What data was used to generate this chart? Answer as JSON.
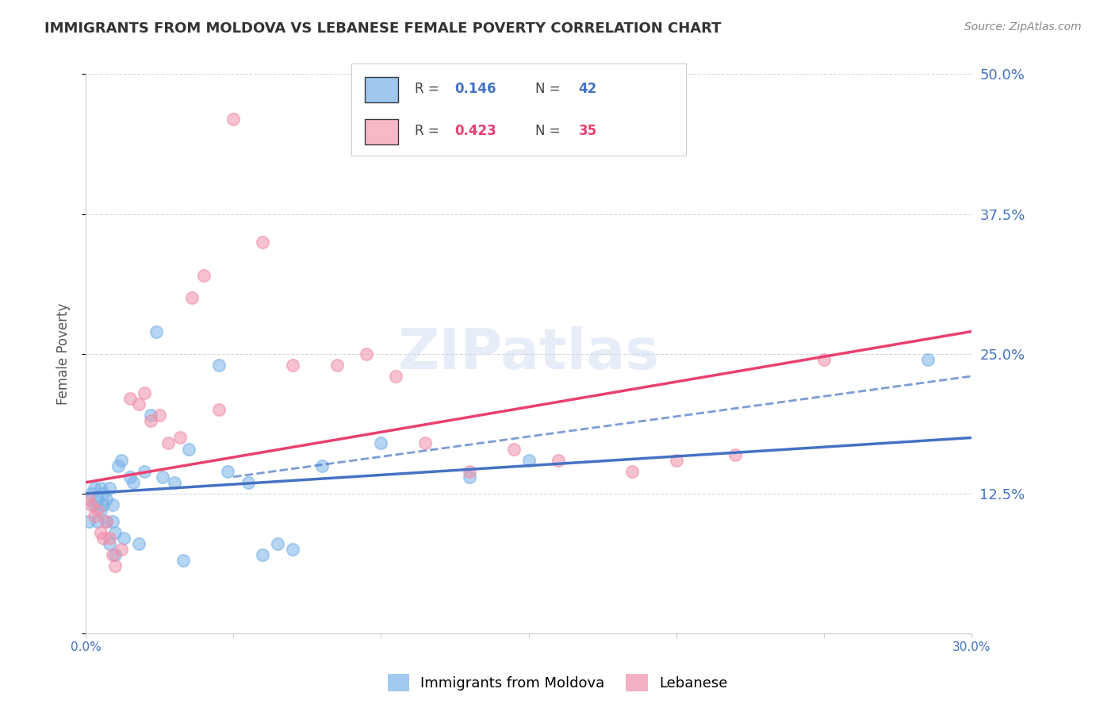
{
  "title": "IMMIGRANTS FROM MOLDOVA VS LEBANESE FEMALE POVERTY CORRELATION CHART",
  "source": "Source: ZipAtlas.com",
  "ylabel_label": "Female Poverty",
  "x_min": 0.0,
  "x_max": 0.3,
  "y_min": 0.0,
  "y_max": 0.5,
  "x_ticks": [
    0.0,
    0.05,
    0.1,
    0.15,
    0.2,
    0.25,
    0.3
  ],
  "x_tick_labels": [
    "0.0%",
    "",
    "",
    "",
    "",
    "",
    "30.0%"
  ],
  "y_ticks": [
    0.0,
    0.125,
    0.25,
    0.375,
    0.5
  ],
  "y_tick_labels": [
    "",
    "12.5%",
    "25.0%",
    "37.5%",
    "50.0%"
  ],
  "legend_entries": [
    {
      "label": "Immigrants from Moldova",
      "color": "#7fb3e8",
      "R": "0.146",
      "N": "42"
    },
    {
      "label": "Lebanese",
      "color": "#f4a0b5",
      "R": "0.423",
      "N": "35"
    }
  ],
  "watermark": "ZIPatlas",
  "blue_scatter_x": [
    0.001,
    0.002,
    0.003,
    0.003,
    0.004,
    0.004,
    0.005,
    0.005,
    0.006,
    0.006,
    0.007,
    0.007,
    0.008,
    0.008,
    0.009,
    0.009,
    0.01,
    0.01,
    0.011,
    0.012,
    0.013,
    0.015,
    0.016,
    0.018,
    0.02,
    0.022,
    0.024,
    0.026,
    0.03,
    0.033,
    0.035,
    0.045,
    0.048,
    0.055,
    0.06,
    0.065,
    0.07,
    0.08,
    0.1,
    0.13,
    0.15,
    0.285
  ],
  "blue_scatter_y": [
    0.1,
    0.125,
    0.13,
    0.115,
    0.1,
    0.12,
    0.11,
    0.13,
    0.115,
    0.125,
    0.1,
    0.12,
    0.08,
    0.13,
    0.1,
    0.115,
    0.07,
    0.09,
    0.15,
    0.155,
    0.085,
    0.14,
    0.135,
    0.08,
    0.145,
    0.195,
    0.27,
    0.14,
    0.135,
    0.065,
    0.165,
    0.24,
    0.145,
    0.135,
    0.07,
    0.08,
    0.075,
    0.15,
    0.17,
    0.14,
    0.155,
    0.245
  ],
  "pink_scatter_x": [
    0.001,
    0.002,
    0.003,
    0.004,
    0.005,
    0.006,
    0.007,
    0.008,
    0.009,
    0.01,
    0.012,
    0.015,
    0.018,
    0.02,
    0.022,
    0.025,
    0.028,
    0.032,
    0.036,
    0.04,
    0.045,
    0.05,
    0.06,
    0.07,
    0.085,
    0.095,
    0.105,
    0.115,
    0.13,
    0.145,
    0.16,
    0.185,
    0.2,
    0.22,
    0.25
  ],
  "pink_scatter_y": [
    0.12,
    0.115,
    0.105,
    0.11,
    0.09,
    0.085,
    0.1,
    0.085,
    0.07,
    0.06,
    0.075,
    0.21,
    0.205,
    0.215,
    0.19,
    0.195,
    0.17,
    0.175,
    0.3,
    0.32,
    0.2,
    0.46,
    0.35,
    0.24,
    0.24,
    0.25,
    0.23,
    0.17,
    0.145,
    0.165,
    0.155,
    0.145,
    0.155,
    0.16,
    0.245
  ],
  "blue_line_x": [
    0.0,
    0.3
  ],
  "blue_line_y_start": 0.125,
  "blue_line_y_end": 0.175,
  "pink_line_x": [
    0.0,
    0.3
  ],
  "pink_line_y_start": 0.135,
  "pink_line_y_end": 0.27,
  "dash_line_x": [
    0.05,
    0.3
  ],
  "dash_line_y": [
    0.14,
    0.23
  ],
  "scatter_size": 120,
  "scatter_alpha": 0.55,
  "blue_color": "#7ab3e8",
  "pink_color": "#f090aa",
  "blue_line_color": "#4472c4",
  "pink_line_color": "#e84070",
  "background_color": "#ffffff",
  "grid_color": "#d8d8d8",
  "title_color": "#333333",
  "axis_label_color": "#555555",
  "tick_label_color": "#4472c4"
}
